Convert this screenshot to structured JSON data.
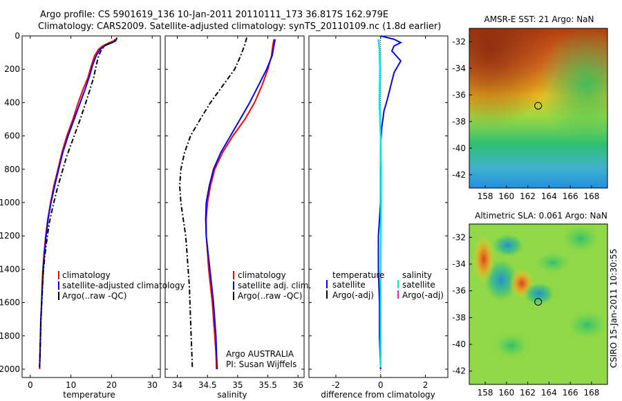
{
  "header": {
    "line1": "Argo profile: CS 5901619_136 10-Jan-2011 20110111_173 36.817S 162.979E",
    "line2": "Climatology: CARS2009. Satellite-adjusted climatology: synTS_20110109.nc (1.8d earlier)"
  },
  "colors": {
    "climatology": "#ff0000",
    "satellite": "#0000ff",
    "argo": "#000000",
    "salinity_satellite": "#00e5e5",
    "salinity_argo": "#e020e0"
  },
  "chart_data": [
    {
      "type": "line",
      "xlabel": "temperature",
      "ylabel": "",
      "xlim": [
        -2,
        32
      ],
      "ylim": [
        2050,
        0
      ],
      "x_ticks": [
        "0",
        "10",
        "20",
        "30"
      ],
      "y_ticks": [
        "0",
        "200",
        "400",
        "600",
        "800",
        "1000",
        "1200",
        "1400",
        "1600",
        "1800",
        "2000"
      ],
      "y_tick_values": [
        0,
        200,
        400,
        600,
        800,
        1000,
        1200,
        1400,
        1600,
        1800,
        2000
      ],
      "x_tick_values": [
        0,
        10,
        20,
        30
      ],
      "legend": [
        "climatology",
        "satellite-adjusted climatology",
        "Argo(..raw -QC)"
      ],
      "series": [
        {
          "name": "climatology",
          "color": "red",
          "style": "solid",
          "points": [
            [
              20.8,
              20
            ],
            [
              20.5,
              30
            ],
            [
              19.5,
              40
            ],
            [
              17.8,
              60
            ],
            [
              16.8,
              80
            ],
            [
              15.8,
              120
            ],
            [
              15,
              180
            ],
            [
              14.2,
              250
            ],
            [
              13,
              320
            ],
            [
              11.8,
              400
            ],
            [
              10.5,
              500
            ],
            [
              9,
              600
            ],
            [
              7.8,
              700
            ],
            [
              6.8,
              800
            ],
            [
              5.8,
              900
            ],
            [
              5,
              1000
            ],
            [
              4.3,
              1100
            ],
            [
              3.8,
              1200
            ],
            [
              3.4,
              1300
            ],
            [
              3.1,
              1400
            ],
            [
              2.9,
              1500
            ],
            [
              2.8,
              1600
            ],
            [
              2.6,
              1700
            ],
            [
              2.5,
              1800
            ],
            [
              2.4,
              1900
            ],
            [
              2.3,
              2000
            ]
          ]
        },
        {
          "name": "satellite-adjusted climatology",
          "color": "blue",
          "style": "solid",
          "points": [
            [
              21.2,
              15
            ],
            [
              21,
              30
            ],
            [
              20.2,
              40
            ],
            [
              18.6,
              55
            ],
            [
              17.2,
              80
            ],
            [
              16.2,
              120
            ],
            [
              15.4,
              170
            ],
            [
              14.6,
              240
            ],
            [
              13.5,
              320
            ],
            [
              12.3,
              400
            ],
            [
              10.8,
              500
            ],
            [
              9.3,
              600
            ],
            [
              8,
              700
            ],
            [
              7,
              800
            ],
            [
              6,
              900
            ],
            [
              5.1,
              1000
            ],
            [
              4.4,
              1100
            ],
            [
              3.9,
              1200
            ],
            [
              3.5,
              1300
            ],
            [
              3.2,
              1400
            ],
            [
              3,
              1500
            ],
            [
              2.8,
              1600
            ],
            [
              2.6,
              1700
            ],
            [
              2.5,
              1800
            ],
            [
              2.4,
              1900
            ],
            [
              2.3,
              1990
            ]
          ]
        },
        {
          "name": "Argo(..raw -QC)",
          "color": "black",
          "style": "dashdot",
          "points": [
            [
              21.3,
              10
            ],
            [
              21.2,
              20
            ],
            [
              20.5,
              35
            ],
            [
              18.5,
              55
            ],
            [
              17.6,
              80
            ],
            [
              16.8,
              120
            ],
            [
              16.2,
              180
            ],
            [
              15.6,
              250
            ],
            [
              14.6,
              330
            ],
            [
              13.4,
              420
            ],
            [
              12,
              520
            ],
            [
              10.5,
              620
            ],
            [
              9,
              720
            ],
            [
              7.8,
              820
            ],
            [
              6.6,
              920
            ],
            [
              5.6,
              1020
            ],
            [
              4.7,
              1120
            ],
            [
              4.1,
              1220
            ],
            [
              3.6,
              1320
            ],
            [
              3.2,
              1420
            ],
            [
              3,
              1520
            ],
            [
              2.8,
              1620
            ],
            [
              2.6,
              1720
            ],
            [
              2.5,
              1820
            ],
            [
              2.4,
              1920
            ],
            [
              2.3,
              1990
            ]
          ]
        }
      ]
    },
    {
      "type": "line",
      "xlabel": "salinity",
      "xlim": [
        33.8,
        36.1
      ],
      "ylim": [
        2050,
        0
      ],
      "x_ticks": [
        "34",
        "34.5",
        "35",
        "35.5",
        "36"
      ],
      "x_tick_values": [
        34,
        34.5,
        35,
        35.5,
        36
      ],
      "legend": [
        "climatology",
        "satellite adj. clim.",
        "Argo(..raw -QC)"
      ],
      "annotation": [
        "Argo AUSTRALIA",
        "PI: Susan Wijffels"
      ],
      "series": [
        {
          "name": "climatology",
          "color": "red",
          "style": "solid",
          "points": [
            [
              35.6,
              20
            ],
            [
              35.58,
              60
            ],
            [
              35.56,
              120
            ],
            [
              35.5,
              200
            ],
            [
              35.4,
              300
            ],
            [
              35.28,
              400
            ],
            [
              35.12,
              500
            ],
            [
              34.92,
              600
            ],
            [
              34.75,
              700
            ],
            [
              34.62,
              800
            ],
            [
              34.55,
              900
            ],
            [
              34.5,
              1000
            ],
            [
              34.48,
              1100
            ],
            [
              34.48,
              1200
            ],
            [
              34.5,
              1300
            ],
            [
              34.52,
              1400
            ],
            [
              34.55,
              1500
            ],
            [
              34.58,
              1600
            ],
            [
              34.6,
              1700
            ],
            [
              34.62,
              1800
            ],
            [
              34.64,
              1900
            ],
            [
              34.65,
              2000
            ]
          ]
        },
        {
          "name": "satellite adj. clim.",
          "color": "blue",
          "style": "solid",
          "points": [
            [
              35.62,
              20
            ],
            [
              35.6,
              60
            ],
            [
              35.57,
              120
            ],
            [
              35.48,
              200
            ],
            [
              35.34,
              300
            ],
            [
              35.2,
              400
            ],
            [
              35.04,
              500
            ],
            [
              34.88,
              600
            ],
            [
              34.72,
              700
            ],
            [
              34.6,
              800
            ],
            [
              34.53,
              900
            ],
            [
              34.48,
              1000
            ],
            [
              34.47,
              1100
            ],
            [
              34.48,
              1200
            ],
            [
              34.51,
              1300
            ],
            [
              34.54,
              1400
            ],
            [
              34.57,
              1500
            ],
            [
              34.6,
              1600
            ],
            [
              34.62,
              1700
            ],
            [
              34.64,
              1800
            ],
            [
              34.65,
              1900
            ],
            [
              34.66,
              2000
            ]
          ]
        },
        {
          "name": "Argo(..raw -QC)",
          "color": "black",
          "style": "dashdot",
          "points": [
            [
              35.15,
              10
            ],
            [
              35.12,
              50
            ],
            [
              35.05,
              120
            ],
            [
              34.95,
              200
            ],
            [
              34.75,
              300
            ],
            [
              34.55,
              400
            ],
            [
              34.38,
              500
            ],
            [
              34.22,
              600
            ],
            [
              34.12,
              700
            ],
            [
              34.06,
              800
            ],
            [
              34.04,
              900
            ],
            [
              34.06,
              1000
            ],
            [
              34.1,
              1100
            ],
            [
              34.14,
              1200
            ],
            [
              34.16,
              1300
            ],
            [
              34.18,
              1400
            ],
            [
              34.2,
              1500
            ],
            [
              34.21,
              1600
            ],
            [
              34.22,
              1700
            ],
            [
              34.23,
              1800
            ],
            [
              34.24,
              1900
            ],
            [
              34.25,
              1990
            ]
          ]
        }
      ]
    },
    {
      "type": "line",
      "xlabel": "difference from climatology",
      "xlim": [
        -3.2,
        3
      ],
      "ylim": [
        2050,
        0
      ],
      "x_ticks": [
        "-2",
        "0",
        "2"
      ],
      "x_tick_values": [
        -2,
        0,
        2
      ],
      "legend_headers": [
        "temperature",
        "salinity"
      ],
      "legend_left": [
        "satellite",
        "Argo(-adj)"
      ],
      "legend_right": [
        "satellite",
        "Argo(-adj)"
      ],
      "series": [
        {
          "name": "satellite",
          "variable": "temperature",
          "color": "blue",
          "style": "solid",
          "points": [
            [
              0,
              0
            ],
            [
              0.6,
              20
            ],
            [
              0.9,
              40
            ],
            [
              0.6,
              60
            ],
            [
              0.5,
              90
            ],
            [
              0.9,
              150
            ],
            [
              0.6,
              220
            ],
            [
              0.45,
              300
            ],
            [
              0.3,
              380
            ],
            [
              0.15,
              450
            ],
            [
              0.05,
              550
            ],
            [
              0,
              650
            ],
            [
              0,
              800
            ],
            [
              0,
              1000
            ],
            [
              -0.05,
              1100
            ],
            [
              -0.1,
              1200
            ],
            [
              -0.1,
              1400
            ],
            [
              -0.05,
              1600
            ],
            [
              -0.05,
              1800
            ],
            [
              0,
              2000
            ]
          ]
        },
        {
          "name": "satellite",
          "variable": "salinity",
          "color": "cyan",
          "style": "solid",
          "points": [
            [
              -0.1,
              20
            ],
            [
              -0.05,
              80
            ],
            [
              -0.03,
              200
            ],
            [
              -0.05,
              400
            ],
            [
              0,
              600
            ],
            [
              0.02,
              800
            ],
            [
              0.02,
              1000
            ],
            [
              0.01,
              1200
            ],
            [
              0,
              1400
            ],
            [
              0,
              1600
            ],
            [
              0,
              1800
            ],
            [
              0,
              1990
            ]
          ]
        }
      ]
    }
  ],
  "maps": [
    {
      "title": "AMSR-E SST: 21 Argo: NaN",
      "x_ticks": [
        "158",
        "160",
        "162",
        "164",
        "166",
        "168"
      ],
      "x_tick_values": [
        158,
        160,
        162,
        164,
        166,
        168
      ],
      "y_ticks": [
        "-32",
        "-34",
        "-36",
        "-38",
        "-40",
        "-42"
      ],
      "y_tick_values": [
        -32,
        -34,
        -36,
        -38,
        -40,
        -42
      ],
      "xlim": [
        156.5,
        169.5
      ],
      "ylim": [
        -43,
        -31
      ],
      "marker": {
        "lon": 162.979,
        "lat": -36.817
      }
    },
    {
      "title": "Altimetric SLA: 0.061 Argo: NaN",
      "x_ticks": [
        "158",
        "160",
        "162",
        "164",
        "166",
        "168"
      ],
      "x_tick_values": [
        158,
        160,
        162,
        164,
        166,
        168
      ],
      "y_ticks": [
        "-32",
        "-34",
        "-36",
        "-38",
        "-40",
        "-42"
      ],
      "y_tick_values": [
        -32,
        -34,
        -36,
        -38,
        -40,
        -42
      ],
      "xlim": [
        156.5,
        169.5
      ],
      "ylim": [
        -43,
        -31
      ],
      "marker": {
        "lon": 162.979,
        "lat": -36.817
      }
    }
  ],
  "footer": {
    "side_label": "CSIRO 15-Jan-2011 10:30:55"
  }
}
